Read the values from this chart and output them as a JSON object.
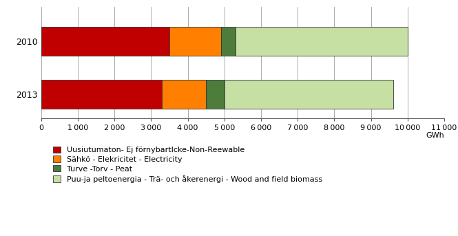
{
  "years": [
    "2010",
    "2013"
  ],
  "segments": [
    {
      "label": "Uusiutumaton- Ej förnybartIcke-Non-Reewable",
      "values": [
        3500,
        3300
      ],
      "color": "#C00000"
    },
    {
      "label": "Sähkö - Elekricitet - Electricity",
      "values": [
        1400,
        1200
      ],
      "color": "#FF8000"
    },
    {
      "label": "Turve -Torv - Peat",
      "values": [
        400,
        500
      ],
      "color": "#4E7C3A"
    },
    {
      "label": "Puu-ja peltoenergia - Trä- och åkerenergi - Wood and field biomass",
      "values": [
        4700,
        4600
      ],
      "color": "#C6E0A4"
    }
  ],
  "xlim": [
    0,
    11000
  ],
  "xticks": [
    0,
    1000,
    2000,
    3000,
    4000,
    5000,
    6000,
    7000,
    8000,
    9000,
    10000,
    11000
  ],
  "xlabel_unit": "GWh",
  "bar_height": 0.55,
  "background_color": "#FFFFFF",
  "legend_fontsize": 8,
  "tick_fontsize": 8,
  "border_color": "#333333",
  "grid_color": "#888888"
}
